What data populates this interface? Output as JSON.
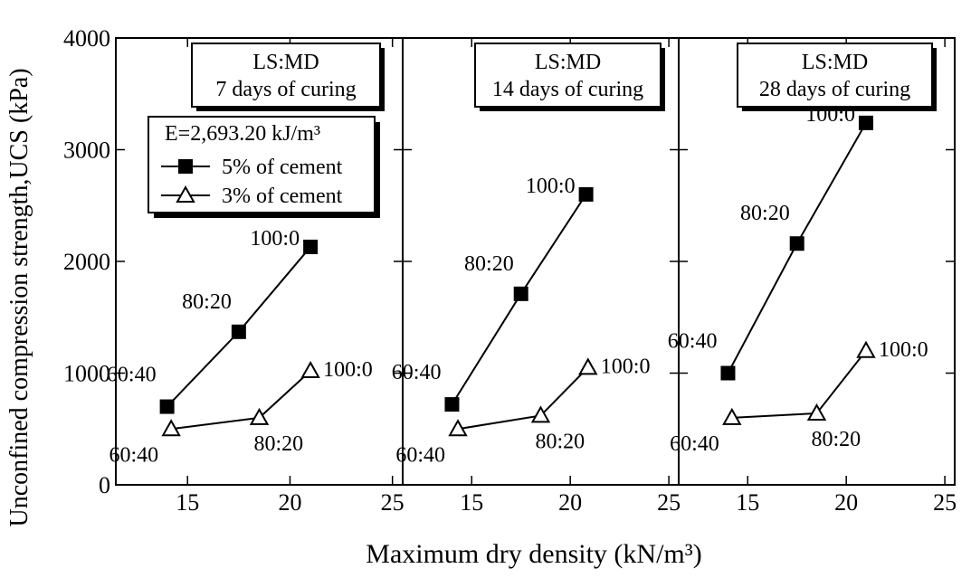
{
  "chart_data": [
    {
      "type": "line",
      "title": "LS:MD",
      "subtitle": "7 days of curing",
      "y_label": "Unconfined compression strength,UCS (kPa)",
      "legend_title": "E=2,693.20 kJ/m³",
      "xlim": [
        11.5,
        25.5
      ],
      "xticks": [
        15,
        20,
        25
      ],
      "ylim": [
        0,
        4000
      ],
      "yticks": [
        0,
        1000,
        2000,
        3000,
        4000
      ],
      "series": [
        {
          "name": "5% of cement",
          "color": "#000000",
          "marker": "square",
          "x": [
            14,
            17.5,
            21
          ],
          "values": [
            700,
            1370,
            2130
          ],
          "point_labels": [
            "60:40",
            "80:20",
            "100:0"
          ]
        },
        {
          "name": "3% of cement",
          "color": "#000000",
          "marker": "triangle",
          "x": [
            14.2,
            18.5,
            21
          ],
          "values": [
            500,
            600,
            1020
          ],
          "point_labels": [
            "60:40",
            "80:20",
            "100:0"
          ]
        }
      ]
    },
    {
      "type": "line",
      "title": "LS:MD",
      "subtitle": "14 days of curing",
      "x_label": "Maximum dry density (kN/m³)",
      "xlim": [
        11.5,
        25.5
      ],
      "xticks": [
        15,
        20,
        25
      ],
      "ylim": [
        0,
        4000
      ],
      "yticks": [
        0,
        1000,
        2000,
        3000,
        4000
      ],
      "series": [
        {
          "color": "#000000",
          "marker": "square",
          "x": [
            14,
            17.5,
            20.8
          ],
          "values": [
            720,
            1710,
            2600
          ],
          "point_labels": [
            "60:40",
            "80:20",
            "100:0"
          ]
        },
        {
          "color": "#000000",
          "marker": "triangle",
          "x": [
            14.3,
            18.5,
            20.9
          ],
          "values": [
            500,
            620,
            1050
          ],
          "point_labels": [
            "60:40",
            "80:20",
            "100:0"
          ]
        }
      ]
    },
    {
      "type": "line",
      "title": "LS:MD",
      "subtitle": "28 days of curing",
      "xlim": [
        11.5,
        25.5
      ],
      "xticks": [
        15,
        20,
        25
      ],
      "ylim": [
        0,
        4000
      ],
      "yticks": [
        0,
        1000,
        2000,
        3000,
        4000
      ],
      "series": [
        {
          "color": "#000000",
          "marker": "square",
          "x": [
            14,
            17.5,
            21
          ],
          "values": [
            1000,
            2160,
            3240
          ],
          "point_labels": [
            "60:40",
            "80:20",
            "100:0"
          ]
        },
        {
          "color": "#000000",
          "marker": "triangle",
          "x": [
            14.2,
            18.5,
            21
          ],
          "values": [
            600,
            640,
            1200
          ],
          "point_labels": [
            "60:40",
            "80:20",
            "100:0"
          ]
        }
      ]
    }
  ]
}
